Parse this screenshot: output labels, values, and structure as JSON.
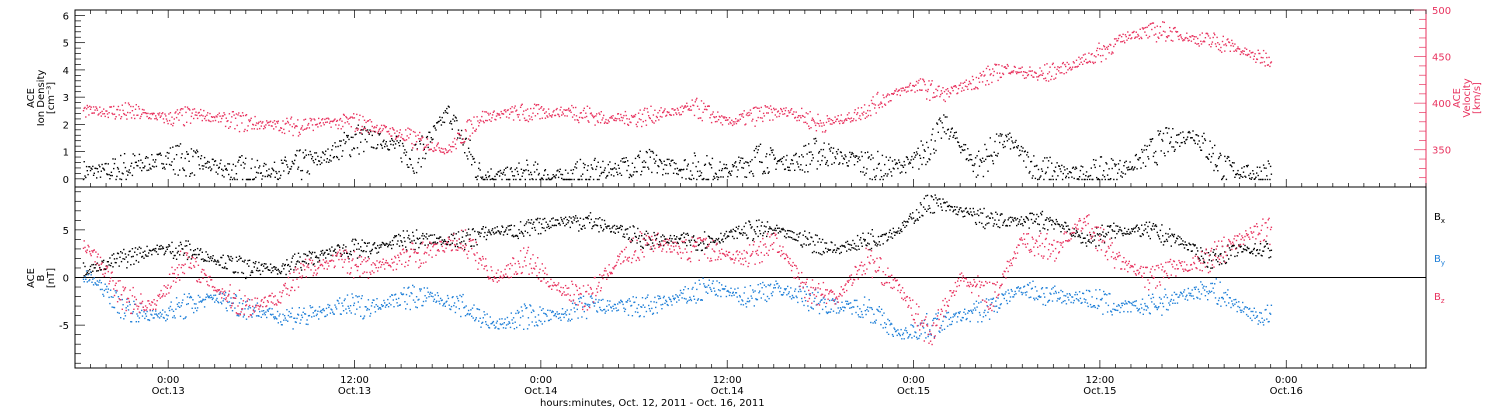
{
  "colors": {
    "black": "#000000",
    "pink": "#e8335f",
    "blue": "#1e7fd8"
  },
  "x_axis": {
    "title": "hours:minutes, Oct. 12, 2011 - Oct. 16, 2011",
    "range_hours": [
      -6,
      81
    ],
    "ticks": [
      {
        "t": 0,
        "time": "0:00",
        "date": "Oct.13"
      },
      {
        "t": 12,
        "time": "12:00",
        "date": "Oct.13"
      },
      {
        "t": 24,
        "time": "0:00",
        "date": "Oct.14"
      },
      {
        "t": 36,
        "time": "12:00",
        "date": "Oct.14"
      },
      {
        "t": 48,
        "time": "0:00",
        "date": "Oct.15"
      },
      {
        "t": 60,
        "time": "12:00",
        "date": "Oct.15"
      },
      {
        "t": 72,
        "time": "0:00",
        "date": "Oct.16"
      }
    ]
  },
  "panel1": {
    "ylabel_left": [
      "ACE",
      "Ion Density",
      "[cm⁻³]"
    ],
    "ylabel_right": [
      "ACE",
      "Velocity",
      "[km/s]"
    ],
    "left_ticks": [
      "0",
      "1",
      "2",
      "3",
      "4",
      "5",
      "6"
    ],
    "left_range": [
      -0.3,
      6.2
    ],
    "right_ticks": [
      "350",
      "400",
      "450",
      "500"
    ],
    "right_range": [
      310,
      500
    ]
  },
  "panel2": {
    "ylabel": [
      "ACE",
      "B",
      "[nT]"
    ],
    "ticks": [
      "-5",
      "0",
      "5"
    ],
    "range": [
      -9.5,
      9.5
    ],
    "legend": [
      {
        "label": "B",
        "sub": "x",
        "color": "#000000"
      },
      {
        "label": "B",
        "sub": "y",
        "color": "#1e7fd8"
      },
      {
        "label": "B",
        "sub": "z",
        "color": "#e8335f"
      }
    ]
  },
  "chart_data": [
    {
      "type": "scatter",
      "x_unit": "hours from Oct. 13 0:00",
      "series": [
        {
          "name": "Ion Density",
          "axis": "left",
          "color": "#000000",
          "x": [
            -4,
            -2,
            0,
            2,
            4,
            6,
            8,
            10,
            12,
            14,
            16,
            18,
            20,
            22,
            24,
            26,
            28,
            30,
            32,
            34,
            36,
            38,
            40,
            42,
            44,
            46,
            48,
            50,
            52,
            54,
            56,
            58,
            60,
            62,
            64,
            66,
            68,
            70
          ],
          "y": [
            0.3,
            0.5,
            0.8,
            0.6,
            0.3,
            0.3,
            0.4,
            0.8,
            1.5,
            1.4,
            0.8,
            2.5,
            0.2,
            0.1,
            0.1,
            0.1,
            0.3,
            0.6,
            0.5,
            0.4,
            0.3,
            0.8,
            0.6,
            1.0,
            0.7,
            0.4,
            0.6,
            2.0,
            0.5,
            1.5,
            0.3,
            0.2,
            0.2,
            0.5,
            1.3,
            1.7,
            0.4,
            0.2
          ]
        },
        {
          "name": "Velocity",
          "axis": "right",
          "color": "#e8335f",
          "x": [
            -4,
            -2,
            0,
            2,
            4,
            6,
            8,
            10,
            12,
            14,
            16,
            18,
            20,
            22,
            24,
            26,
            28,
            30,
            32,
            34,
            36,
            38,
            40,
            42,
            44,
            46,
            48,
            50,
            52,
            54,
            56,
            58,
            60,
            62,
            64,
            66,
            68,
            70
          ],
          "y": [
            392,
            390,
            384,
            388,
            382,
            378,
            376,
            380,
            380,
            372,
            360,
            350,
            385,
            390,
            390,
            392,
            384,
            385,
            390,
            395,
            380,
            388,
            392,
            378,
            386,
            405,
            420,
            410,
            425,
            438,
            430,
            440,
            455,
            475,
            478,
            470,
            465,
            450
          ]
        }
      ]
    },
    {
      "type": "scatter",
      "x_unit": "hours from Oct. 13 0:00",
      "series": [
        {
          "name": "Bx",
          "color": "#000000",
          "x": [
            -5,
            -3,
            -1,
            1,
            3,
            5,
            7,
            9,
            11,
            13,
            15,
            17,
            19,
            21,
            23,
            25,
            27,
            29,
            31,
            33,
            35,
            37,
            39,
            41,
            43,
            45,
            47,
            49,
            51,
            53,
            55,
            57,
            59,
            61,
            63,
            65,
            67,
            69,
            70
          ],
          "y": [
            1,
            2,
            3,
            3,
            2,
            1,
            1,
            2,
            3,
            3,
            4,
            4,
            4,
            5,
            5,
            6,
            6,
            5,
            4,
            4,
            4,
            5,
            5,
            4,
            3,
            4,
            5,
            8,
            7,
            6,
            6,
            6,
            4,
            5,
            5,
            4,
            2,
            3,
            3
          ]
        },
        {
          "name": "By",
          "color": "#1e7fd8",
          "x": [
            -5,
            -3,
            -1,
            1,
            3,
            5,
            7,
            9,
            11,
            13,
            15,
            17,
            19,
            21,
            23,
            25,
            27,
            29,
            31,
            33,
            35,
            37,
            39,
            41,
            43,
            45,
            47,
            49,
            51,
            53,
            55,
            57,
            59,
            61,
            63,
            65,
            67,
            69,
            70
          ],
          "y": [
            0,
            -3,
            -4,
            -3,
            -2,
            -3,
            -4,
            -4,
            -3,
            -3,
            -2,
            -2,
            -3,
            -5,
            -4,
            -4,
            -3,
            -3,
            -3,
            -2,
            -1,
            -2,
            -1,
            -2,
            -3,
            -3,
            -6,
            -5,
            -4,
            -3,
            -1,
            -2,
            -2,
            -3,
            -3,
            -2,
            -1,
            -3,
            -4
          ]
        },
        {
          "name": "Bz",
          "color": "#e8335f",
          "x": [
            -5,
            -3,
            -1,
            1,
            3,
            5,
            7,
            9,
            11,
            13,
            15,
            17,
            19,
            21,
            23,
            25,
            27,
            29,
            31,
            33,
            35,
            37,
            39,
            41,
            43,
            45,
            47,
            49,
            51,
            53,
            55,
            57,
            59,
            61,
            63,
            65,
            67,
            69,
            70
          ],
          "y": [
            3,
            -2,
            -3,
            2,
            -1,
            -3,
            -2,
            1,
            2,
            1,
            2,
            3,
            4,
            0,
            2,
            -1,
            -2,
            2,
            4,
            3,
            3,
            2,
            4,
            -1,
            -2,
            2,
            -1,
            -6,
            0,
            -2,
            4,
            3,
            6,
            2,
            0,
            1,
            2,
            4,
            5
          ]
        }
      ]
    }
  ]
}
